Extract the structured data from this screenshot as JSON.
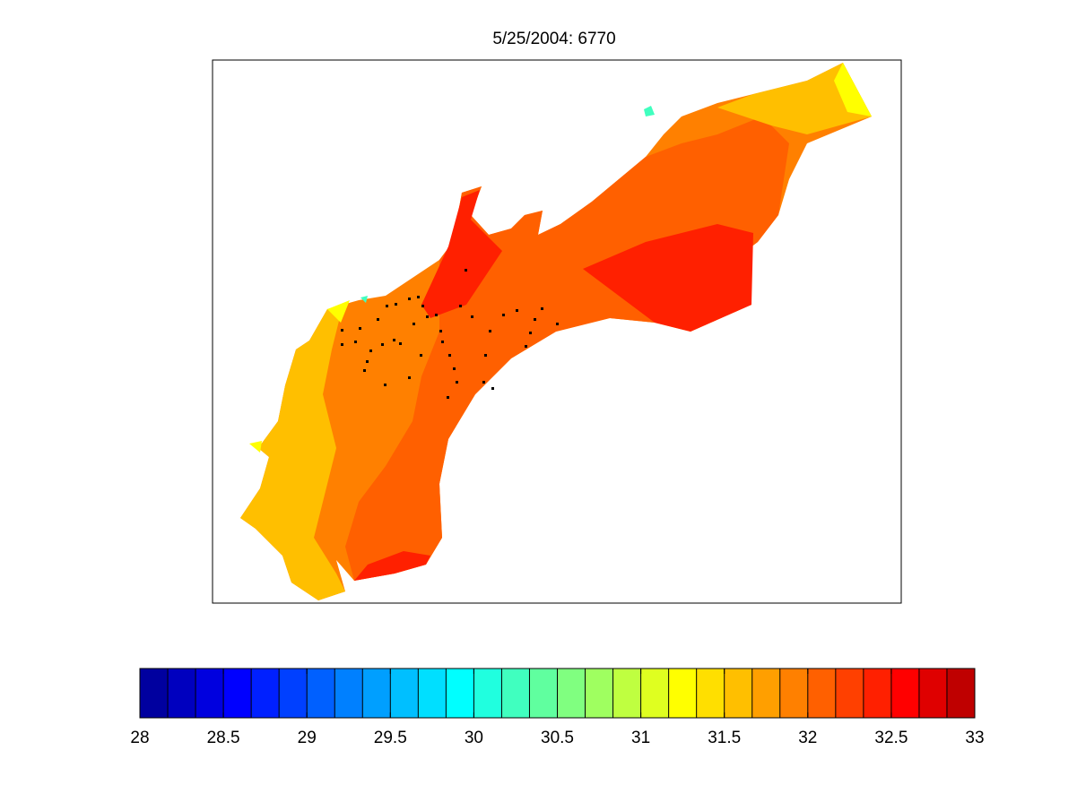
{
  "chart_data": {
    "type": "contour-map",
    "title": "5/25/2004: 6770",
    "colorbar": {
      "clim": [
        28,
        33
      ],
      "ticks": [
        28,
        28.5,
        29,
        29.5,
        30,
        30.5,
        31,
        31.5,
        32,
        32.5,
        33
      ],
      "colors": [
        "#00009f",
        "#0000bf",
        "#0000df",
        "#0000ff",
        "#0020ff",
        "#0040ff",
        "#0060ff",
        "#0080ff",
        "#009fff",
        "#00bfff",
        "#00dfff",
        "#00ffff",
        "#20ffdf",
        "#40ffbf",
        "#60ff9f",
        "#80ff80",
        "#9fff60",
        "#bfff40",
        "#dfff20",
        "#ffff00",
        "#ffdf00",
        "#ffbf00",
        "#ff9f00",
        "#ff8000",
        "#ff6000",
        "#ff4000",
        "#ff2000",
        "#ff0000",
        "#df0000",
        "#bf0000"
      ]
    }
  }
}
